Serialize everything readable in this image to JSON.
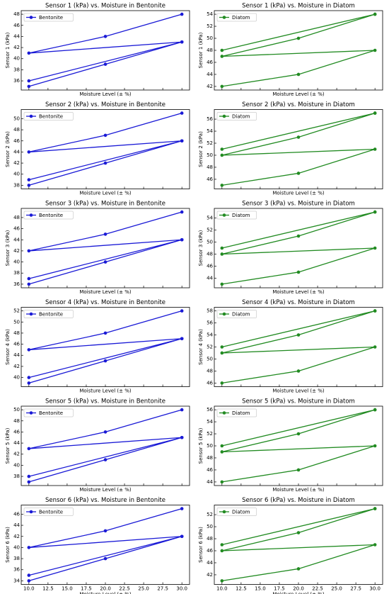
{
  "chart_data": [
    {
      "type": "line",
      "title": "Sensor 1 (kPa) vs. Moisture in Bentonite",
      "x_label": "Moisture Level (± %)",
      "y_label": "Sensor 1 (kPa)",
      "x": [
        10,
        20,
        30,
        10,
        30,
        10,
        20,
        30
      ],
      "series": [
        {
          "name": "Bentonite",
          "color": "#1a1ad6",
          "values": [
            35,
            39,
            43,
            36,
            43,
            41,
            44,
            48
          ]
        }
      ],
      "xlim": [
        9,
        31
      ],
      "xticks": [
        10,
        12.5,
        15,
        17.5,
        20,
        22.5,
        25,
        27.5,
        30
      ],
      "ylim": [
        34.35,
        48.65
      ],
      "yticks": [
        36,
        38,
        40,
        42,
        44,
        46,
        48
      ],
      "legend": "upper left"
    },
    {
      "type": "line",
      "title": "Sensor 1 (kPa) vs. Moisture in Diatom",
      "x_label": "Moisture Level (± %)",
      "y_label": "Sensor 1 (kPa)",
      "x": [
        10,
        20,
        30,
        10,
        20,
        30,
        10,
        30
      ],
      "series": [
        {
          "name": "Diatom",
          "color": "#228b22",
          "values": [
            42,
            44,
            48,
            47,
            50,
            54,
            48,
            54
          ]
        }
      ],
      "xlim": [
        9,
        31
      ],
      "xticks": [
        10,
        12.5,
        15,
        17.5,
        20,
        22.5,
        25,
        27.5,
        30
      ],
      "ylim": [
        41.4,
        54.6
      ],
      "yticks": [
        42,
        44,
        46,
        48,
        50,
        52,
        54
      ],
      "legend": "upper left"
    },
    {
      "type": "line",
      "title": "Sensor 2 (kPa) vs. Moisture in Bentonite",
      "x_label": "Moisture Level (± %)",
      "y_label": "Sensor 2 (kPa)",
      "x": [
        10,
        20,
        30,
        10,
        30,
        10,
        20,
        30
      ],
      "series": [
        {
          "name": "Bentonite",
          "color": "#1a1ad6",
          "values": [
            38,
            42,
            46,
            39,
            46,
            44,
            47,
            51
          ]
        }
      ],
      "xlim": [
        9,
        31
      ],
      "xticks": [
        10,
        12.5,
        15,
        17.5,
        20,
        22.5,
        25,
        27.5,
        30
      ],
      "ylim": [
        37.35,
        51.65
      ],
      "yticks": [
        38,
        40,
        42,
        44,
        46,
        48,
        50
      ],
      "legend": "upper left"
    },
    {
      "type": "line",
      "title": "Sensor 2 (kPa) vs. Moisture in Diatom",
      "x_label": "Moisture Level (± %)",
      "y_label": "Sensor 2 (kPa)",
      "x": [
        10,
        20,
        30,
        10,
        20,
        30,
        10,
        30
      ],
      "series": [
        {
          "name": "Diatom",
          "color": "#228b22",
          "values": [
            45,
            47,
            51,
            50,
            53,
            57,
            51,
            57
          ]
        }
      ],
      "xlim": [
        9,
        31
      ],
      "xticks": [
        10,
        12.5,
        15,
        17.5,
        20,
        22.5,
        25,
        27.5,
        30
      ],
      "ylim": [
        44.4,
        57.6
      ],
      "yticks": [
        46,
        48,
        50,
        52,
        54,
        56
      ],
      "legend": "upper left"
    },
    {
      "type": "line",
      "title": "Sensor 3 (kPa) vs. Moisture in Bentonite",
      "x_label": "Moisture Level (± %)",
      "y_label": "Sensor 3 (kPa)",
      "x": [
        10,
        20,
        30,
        10,
        30,
        10,
        20,
        30
      ],
      "series": [
        {
          "name": "Bentonite",
          "color": "#1a1ad6",
          "values": [
            36,
            40,
            44,
            37,
            44,
            42,
            45,
            49
          ]
        }
      ],
      "xlim": [
        9,
        31
      ],
      "xticks": [
        10,
        12.5,
        15,
        17.5,
        20,
        22.5,
        25,
        27.5,
        30
      ],
      "ylim": [
        35.35,
        49.65
      ],
      "yticks": [
        36,
        38,
        40,
        42,
        44,
        46,
        48
      ],
      "legend": "upper left"
    },
    {
      "type": "line",
      "title": "Sensor 3 (kPa) vs. Moisture in Diatom",
      "x_label": "Moisture Level (± %)",
      "y_label": "Sensor 3 (kPa)",
      "x": [
        10,
        20,
        30,
        10,
        20,
        30,
        10,
        30
      ],
      "series": [
        {
          "name": "Diatom",
          "color": "#228b22",
          "values": [
            43,
            45,
            49,
            48,
            51,
            55,
            49,
            55
          ]
        }
      ],
      "xlim": [
        9,
        31
      ],
      "xticks": [
        10,
        12.5,
        15,
        17.5,
        20,
        22.5,
        25,
        27.5,
        30
      ],
      "ylim": [
        42.4,
        55.6
      ],
      "yticks": [
        44,
        46,
        48,
        50,
        52,
        54
      ],
      "legend": "upper left"
    },
    {
      "type": "line",
      "title": "Sensor 4 (kPa) vs. Moisture in Bentonite",
      "x_label": "Moisture Level (± %)",
      "y_label": "Sensor 4 (kPa)",
      "x": [
        10,
        20,
        30,
        10,
        30,
        10,
        20,
        30
      ],
      "series": [
        {
          "name": "Bentonite",
          "color": "#1a1ad6",
          "values": [
            39,
            43,
            47,
            40,
            47,
            45,
            48,
            52
          ]
        }
      ],
      "xlim": [
        9,
        31
      ],
      "xticks": [
        10,
        12.5,
        15,
        17.5,
        20,
        22.5,
        25,
        27.5,
        30
      ],
      "ylim": [
        38.35,
        52.65
      ],
      "yticks": [
        40,
        42,
        44,
        46,
        48,
        50,
        52
      ],
      "legend": "upper left"
    },
    {
      "type": "line",
      "title": "Sensor 4 (kPa) vs. Moisture in Diatom",
      "x_label": "Moisture Level (± %)",
      "y_label": "Sensor 4 (kPa)",
      "x": [
        10,
        20,
        30,
        10,
        20,
        30,
        10,
        30
      ],
      "series": [
        {
          "name": "Diatom",
          "color": "#228b22",
          "values": [
            46,
            48,
            52,
            51,
            54,
            58,
            52,
            58
          ]
        }
      ],
      "xlim": [
        9,
        31
      ],
      "xticks": [
        10,
        12.5,
        15,
        17.5,
        20,
        22.5,
        25,
        27.5,
        30
      ],
      "ylim": [
        45.4,
        58.6
      ],
      "yticks": [
        46,
        48,
        50,
        52,
        54,
        56,
        58
      ],
      "legend": "upper left"
    },
    {
      "type": "line",
      "title": "Sensor 5 (kPa) vs. Moisture in Bentonite",
      "x_label": "Moisture Level (± %)",
      "y_label": "Sensor 5 (kPa)",
      "x": [
        10,
        20,
        30,
        10,
        30,
        10,
        20,
        30
      ],
      "series": [
        {
          "name": "Bentonite",
          "color": "#1a1ad6",
          "values": [
            37,
            41,
            45,
            38,
            45,
            43,
            46,
            50
          ]
        }
      ],
      "xlim": [
        9,
        31
      ],
      "xticks": [
        10,
        12.5,
        15,
        17.5,
        20,
        22.5,
        25,
        27.5,
        30
      ],
      "ylim": [
        36.35,
        50.65
      ],
      "yticks": [
        38,
        40,
        42,
        44,
        46,
        48,
        50
      ],
      "legend": "upper left"
    },
    {
      "type": "line",
      "title": "Sensor 5 (kPa) vs. Moisture in Diatom",
      "x_label": "Moisture Level (± %)",
      "y_label": "Sensor 5 (kPa)",
      "x": [
        10,
        20,
        30,
        10,
        20,
        30,
        10,
        30
      ],
      "series": [
        {
          "name": "Diatom",
          "color": "#228b22",
          "values": [
            44,
            46,
            50,
            49,
            52,
            56,
            50,
            56
          ]
        }
      ],
      "xlim": [
        9,
        31
      ],
      "xticks": [
        10,
        12.5,
        15,
        17.5,
        20,
        22.5,
        25,
        27.5,
        30
      ],
      "ylim": [
        43.4,
        56.6
      ],
      "yticks": [
        44,
        46,
        48,
        50,
        52,
        54,
        56
      ],
      "legend": "upper left"
    },
    {
      "type": "line",
      "title": "Sensor 6 (kPa) vs. Moisture in Bentonite",
      "x_label": "Moisture Level (± %)",
      "y_label": "Sensor 6 (kPa)",
      "x": [
        10,
        20,
        30,
        10,
        30,
        10,
        20,
        30
      ],
      "series": [
        {
          "name": "Bentonite",
          "color": "#1a1ad6",
          "values": [
            34,
            38,
            42,
            35,
            42,
            40,
            43,
            47
          ]
        }
      ],
      "xlim": [
        9,
        31
      ],
      "xticks": [
        {
          "value": 10,
          "label": "10.0"
        },
        12.5,
        {
          "value": 15,
          "label": "15.0"
        },
        17.5,
        {
          "value": 20,
          "label": "20.0"
        },
        22.5,
        {
          "value": 25,
          "label": "25.0"
        },
        27.5,
        {
          "value": 30,
          "label": "30.0"
        }
      ],
      "ylim": [
        33.35,
        47.65
      ],
      "yticks": [
        34,
        36,
        38,
        40,
        42,
        44,
        46
      ],
      "legend": "upper left"
    },
    {
      "type": "line",
      "title": "Sensor 6 (kPa) vs. Moisture in Diatom",
      "x_label": "Moisture Level (± %)",
      "y_label": "Sensor 6 (kPa)",
      "x": [
        10,
        20,
        30,
        10,
        20,
        30,
        10,
        30
      ],
      "series": [
        {
          "name": "Diatom",
          "color": "#228b22",
          "values": [
            41,
            43,
            47,
            46,
            49,
            53,
            47,
            53
          ]
        }
      ],
      "xlim": [
        9,
        31
      ],
      "xticks": [
        {
          "value": 10,
          "label": "10.0"
        },
        12.5,
        {
          "value": 15,
          "label": "15.0"
        },
        17.5,
        {
          "value": 20,
          "label": "20.0"
        },
        22.5,
        {
          "value": 25,
          "label": "25.0"
        },
        27.5,
        {
          "value": 30,
          "label": "30.0"
        }
      ],
      "ylim": [
        40.4,
        53.6
      ],
      "yticks": [
        42,
        44,
        46,
        48,
        50,
        52
      ],
      "legend": "upper left"
    }
  ]
}
